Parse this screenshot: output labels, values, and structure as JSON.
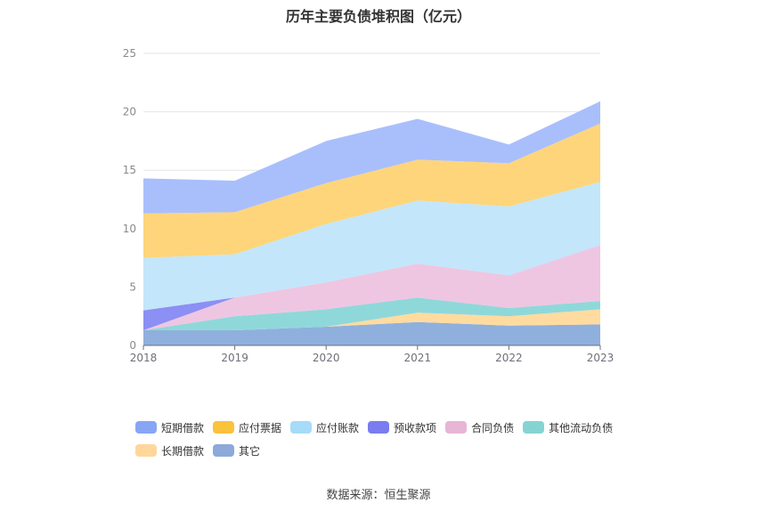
{
  "title": "历年主要负债堆积图（亿元）",
  "source": "数据来源：恒生聚源",
  "chart_data": {
    "type": "area",
    "stacked": true,
    "categories": [
      "2018",
      "2019",
      "2020",
      "2021",
      "2022",
      "2023"
    ],
    "ylim": [
      0,
      25
    ],
    "yticks": [
      0,
      5,
      10,
      15,
      20,
      25
    ],
    "grid": true,
    "legend_position": "bottom",
    "series": [
      {
        "name": "其它",
        "color": "#8fb0dd",
        "values": [
          1.3,
          1.3,
          1.6,
          2.0,
          1.7,
          1.8
        ]
      },
      {
        "name": "长期借款",
        "color": "#ffdba0",
        "values": [
          0,
          0,
          0,
          0.8,
          0.8,
          1.3
        ]
      },
      {
        "name": "其他流动负债",
        "color": "#8fd8da",
        "values": [
          0,
          1.2,
          1.5,
          1.3,
          0.7,
          0.7
        ]
      },
      {
        "name": "合同负债",
        "color": "#eec6e2",
        "values": [
          0,
          1.6,
          2.3,
          2.9,
          2.8,
          4.8
        ]
      },
      {
        "name": "预收款项",
        "color": "#8c8ff3",
        "values": [
          1.7,
          0,
          0,
          0,
          0,
          0
        ]
      },
      {
        "name": "应付账款",
        "color": "#c3e6fa",
        "values": [
          4.5,
          3.7,
          5.0,
          5.4,
          5.9,
          5.4
        ]
      },
      {
        "name": "应付票据",
        "color": "#fed57a",
        "values": [
          3.8,
          3.6,
          3.5,
          3.5,
          3.7,
          5.0
        ]
      },
      {
        "name": "短期借款",
        "color": "#a9bffc",
        "values": [
          3.0,
          2.7,
          3.6,
          3.5,
          1.6,
          1.9
        ]
      }
    ],
    "legend_order": [
      "短期借款",
      "应付票据",
      "应付账款",
      "预收款项",
      "合同负债",
      "其他流动负债",
      "长期借款",
      "其它"
    ],
    "legend_colors": {
      "短期借款": "#86a6f5",
      "应付票据": "#fbc23c",
      "应付账款": "#a6dcf8",
      "预收款项": "#7a7cf0",
      "合同负债": "#e7b5d6",
      "其他流动负债": "#85d4d4",
      "长期借款": "#ffd79b",
      "其它": "#8ca9d9"
    }
  }
}
